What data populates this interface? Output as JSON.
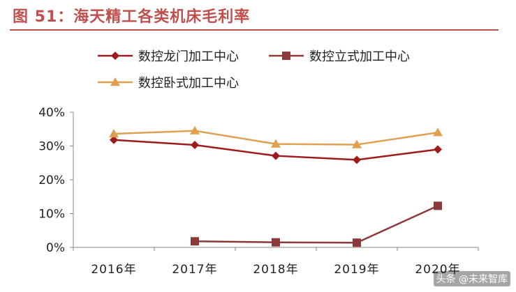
{
  "figure_title": "图 51：海天精工各类机床毛利率",
  "watermark": "头条 @未来智库",
  "chart_data": {
    "type": "line",
    "categories": [
      "2016年",
      "2017年",
      "2018年",
      "2019年",
      "2020年"
    ],
    "ylim": [
      0,
      40
    ],
    "yticks": [
      0,
      10,
      20,
      30,
      40
    ],
    "ytick_labels": [
      "0%",
      "10%",
      "20%",
      "30%",
      "40%"
    ],
    "grid": false,
    "legend_position": "top",
    "series": [
      {
        "name": "数控龙门加工中心",
        "values": [
          31.8,
          30.3,
          27.1,
          25.9,
          29.0
        ],
        "color": "#9e1b1b",
        "marker": "diamond"
      },
      {
        "name": "数控立式加工中心",
        "values": [
          null,
          1.8,
          1.5,
          1.4,
          12.3
        ],
        "color": "#8b3a3a",
        "marker": "square"
      },
      {
        "name": "数控卧式加工中心",
        "values": [
          33.6,
          34.5,
          30.6,
          30.4,
          34.0
        ],
        "color": "#e0a050",
        "marker": "triangle"
      }
    ]
  }
}
